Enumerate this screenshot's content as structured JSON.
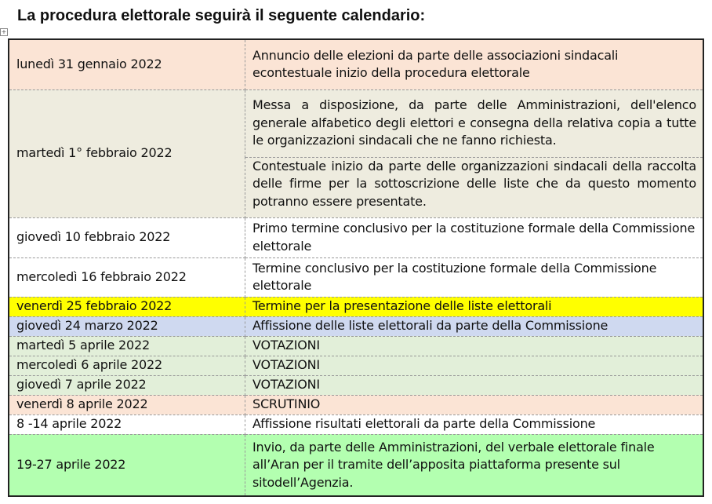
{
  "title": "La procedura elettorale seguirà il seguente calendario:",
  "rows": [
    {
      "date": "lunedì 31 gennaio 2022",
      "events": [
        "Annuncio delle elezioni da parte delle associazioni sindacali econtestuale inizio della procedura elettorale"
      ],
      "color": "#fbe4d5"
    },
    {
      "date": "martedì 1° febbraio 2022",
      "events": [
        "Messa a disposizione, da parte delle Amministrazioni, dell'elenco generale alfabetico degli elettori e consegna della relativa copia a tutte le organizzazioni sindacali che ne fanno richiesta.",
        "Contestuale inizio da parte delle organizzazioni sindacali della raccolta delle firme per la sottoscrizione delle liste che da questo momento potranno essere presentate."
      ],
      "color": "#eeecdf"
    },
    {
      "date": "giovedì 10 febbraio 2022",
      "events": [
        "Primo termine conclusivo per la costituzione formale della Commissione elettorale"
      ],
      "color": "#ffffff"
    },
    {
      "date": "mercoledì 16 febbraio 2022",
      "events": [
        "Termine conclusivo per la costituzione formale della Commissione elettorale"
      ],
      "color": "#ffffff"
    },
    {
      "date": "venerdì 25 febbraio 2022",
      "events": [
        "Termine per la presentazione delle liste elettorali"
      ],
      "color": "#ffff00"
    },
    {
      "date": "giovedì 24 marzo 2022",
      "events": [
        "Affissione delle liste elettorali da parte della Commissione"
      ],
      "color": "#cfd9f0"
    },
    {
      "date": "martedì 5 aprile 2022",
      "events": [
        "VOTAZIONI"
      ],
      "color": "#e2efd9"
    },
    {
      "date": "mercoledì 6 aprile 2022",
      "events": [
        "VOTAZIONI"
      ],
      "color": "#e2efd9"
    },
    {
      "date": "giovedì 7 aprile 2022",
      "events": [
        "VOTAZIONI"
      ],
      "color": "#e2efd9"
    },
    {
      "date": "venerdì 8 aprile 2022",
      "events": [
        "SCRUTINIO"
      ],
      "color": "#fbe4d5"
    },
    {
      "date": "8 -14 aprile 2022",
      "events": [
        "Affissione risultati elettorali da parte della Commissione"
      ],
      "color": "#ffffff"
    },
    {
      "date": "19-27 aprile 2022",
      "events": [
        "Invio, da parte delle Amministrazioni, del verbale elettorale finale all’Aran per il tramite dell’apposita piattaforma presente sul sitodell’Agenzia."
      ],
      "color": "#b3ffb0"
    }
  ]
}
